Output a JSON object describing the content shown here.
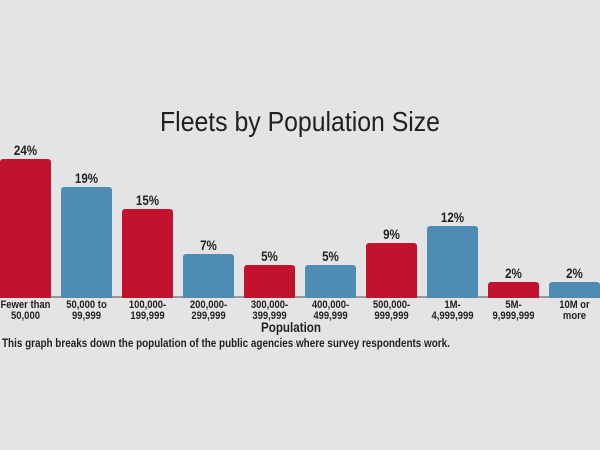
{
  "title": "Fleets by Population Size",
  "chart_data": {
    "type": "bar",
    "categories": [
      [
        "Fewer than",
        "50,000"
      ],
      [
        "50,000 to",
        "99,999"
      ],
      [
        "100,000-",
        "199,999"
      ],
      [
        "200,000-",
        "299,999"
      ],
      [
        "300,000-",
        "399,999"
      ],
      [
        "400,000-",
        "499,999"
      ],
      [
        "500,000-",
        "999,999"
      ],
      [
        "1M-",
        "4,999,999"
      ],
      [
        "5M-",
        "9,999,999"
      ],
      [
        "10M or",
        "more"
      ]
    ],
    "values": [
      24,
      19,
      15,
      7,
      5,
      5,
      9,
      12,
      2,
      2
    ],
    "value_labels": [
      "24%",
      "19%",
      "15%",
      "7%",
      "5%",
      "5%",
      "9%",
      "12%",
      "2%",
      "2%"
    ],
    "xlabel": "Population",
    "ylim": [
      0,
      25
    ],
    "grid": false,
    "legend": false,
    "bar_color_odd": "#c2122e",
    "bar_color_even": "#4f8cb4"
  },
  "caption": "This graph breaks down the population of the public agencies where survey respondents work.",
  "colors": {
    "background": "#e4e4e4",
    "axis_line": "#999999",
    "text": "#231f20"
  }
}
